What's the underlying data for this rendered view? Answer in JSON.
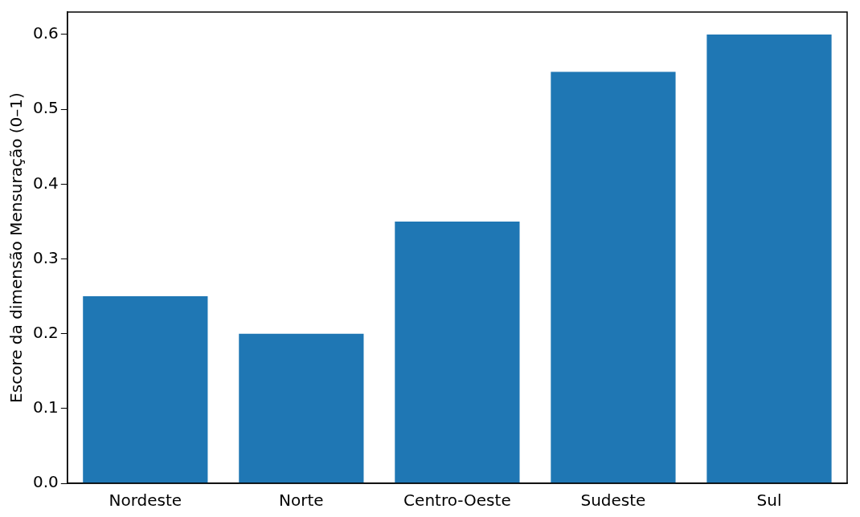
{
  "chart_data": {
    "type": "bar",
    "ylabel": "Escore da dimensão Mensuração (0–1)",
    "categories": [
      "Nordeste",
      "Norte",
      "Centro-Oeste",
      "Sudeste",
      "Sul"
    ],
    "values": [
      0.25,
      0.2,
      0.35,
      0.55,
      0.6
    ],
    "color": "#1f77b4",
    "ylim": [
      0,
      0.63
    ],
    "yticks": [
      {
        "value": 0,
        "label": "0.0"
      },
      {
        "value": 0.1,
        "label": "0.1"
      },
      {
        "value": 0.2,
        "label": "0.2"
      },
      {
        "value": 0.3,
        "label": "0.3"
      },
      {
        "value": 0.4,
        "label": "0.4"
      },
      {
        "value": 0.5,
        "label": "0.5"
      },
      {
        "value": 0.6,
        "label": "0.6"
      }
    ],
    "grid": false,
    "legend": false
  }
}
